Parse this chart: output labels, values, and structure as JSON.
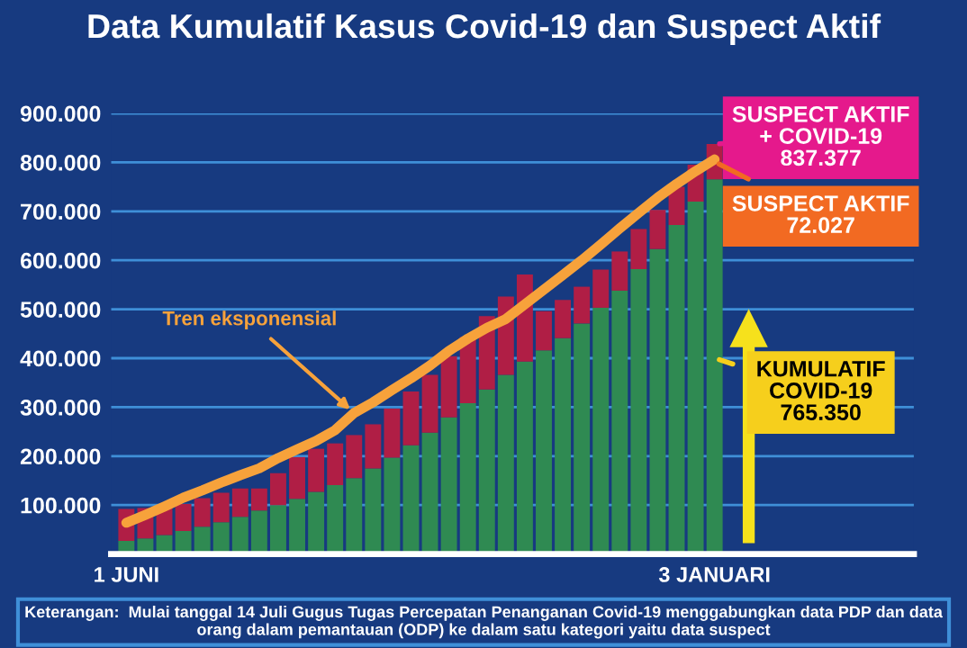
{
  "chart_data": {
    "type": "bar",
    "title": "Data Kumulatif Kasus Covid-19 dan Suspect Aktif",
    "categories": [
      "1 JUNI",
      null,
      null,
      null,
      null,
      null,
      null,
      null,
      null,
      null,
      null,
      null,
      null,
      null,
      null,
      null,
      null,
      null,
      null,
      null,
      null,
      null,
      null,
      null,
      null,
      null,
      null,
      null,
      null,
      null,
      null,
      "3 JANUARI"
    ],
    "stacked": true,
    "series": [
      {
        "color": "#2f8a52",
        "values": [
          27000,
          32000,
          39000,
          47000,
          56000,
          65000,
          76000,
          89000,
          100000,
          113000,
          127000,
          141000,
          155000,
          175000,
          197000,
          222000,
          248000,
          279000,
          308000,
          336000,
          366000,
          393000,
          416000,
          441000,
          471000,
          503000,
          538000,
          582000,
          623000,
          672000,
          720000,
          765350
        ]
      },
      {
        "color": "#b01e45",
        "values": [
          65000,
          62000,
          58000,
          55000,
          58000,
          60000,
          58000,
          45000,
          65000,
          85000,
          88000,
          85000,
          88000,
          90000,
          100000,
          110000,
          118000,
          125000,
          135000,
          150000,
          160000,
          178000,
          80000,
          78000,
          75000,
          78000,
          80000,
          82000,
          80000,
          78000,
          75000,
          72027
        ]
      },
      {
        "type": "line",
        "name": "Tren eksponensial",
        "color": "#f7a23b",
        "values": [
          64000,
          80000,
          97000,
          115000,
          130000,
          146000,
          161000,
          175000,
          196000,
          214000,
          231000,
          253000,
          288000,
          310000,
          335000,
          359000,
          385000,
          415000,
          440000,
          462000,
          480000,
          510000,
          540000,
          570000,
          600000,
          632000,
          665000,
          697000,
          728000,
          756000,
          782000,
          806000
        ]
      }
    ],
    "ylim": [
      0,
      900000
    ],
    "yticks": [
      {
        "value": 100000,
        "label": "100.000"
      },
      {
        "value": 200000,
        "label": "200.000"
      },
      {
        "value": 300000,
        "label": "300.000"
      },
      {
        "value": 400000,
        "label": "400.000"
      },
      {
        "value": 500000,
        "label": "500.000"
      },
      {
        "value": 600000,
        "label": "600.000"
      },
      {
        "value": 700000,
        "label": "700.000"
      },
      {
        "value": 800000,
        "label": "800.000"
      },
      {
        "value": 900000,
        "label": "900.000"
      }
    ],
    "grid": "y",
    "legend": false,
    "annotations": [
      {
        "text": "SUSPECT AKTIF\n+ COVID-19\n837.377",
        "x": "3 JANUARI",
        "y": 837377
      },
      {
        "text": "SUSPECT AKTIF\n72.027",
        "x": "3 JANUARI",
        "y": 801363
      },
      {
        "text": "KUMULATIF\nCOVID-19\n765.350",
        "x": "3 JANUARI",
        "y": 400000
      },
      "Keterangan:  Mulai tanggal 14 Juli Gugus Tugas Percepatan Penanganan Covid-19 menggabungkan data PDP dan data orang dalam pemantauan (ODP) ke dalam satu kategori yaitu data suspect"
    ]
  }
}
